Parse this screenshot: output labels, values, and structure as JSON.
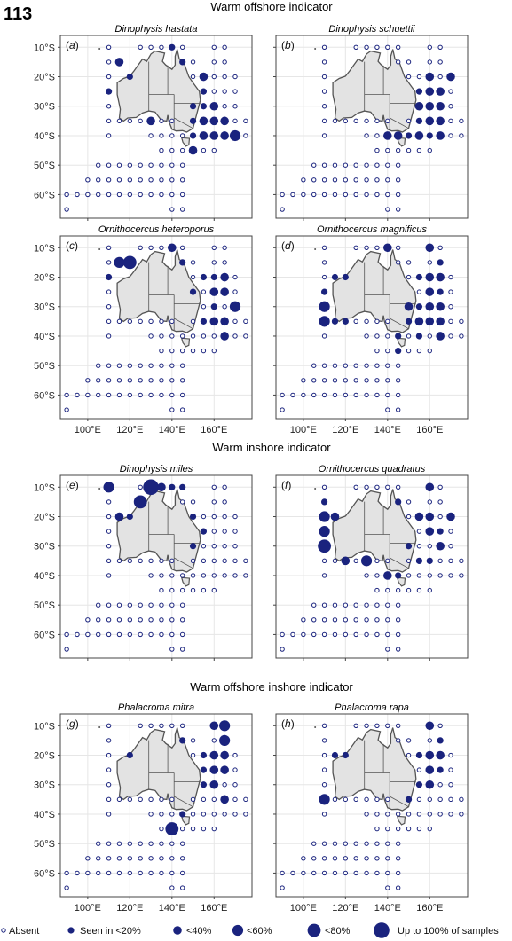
{
  "figure_number": "113",
  "sections": [
    {
      "title": "Warm offshore indicator"
    },
    {
      "title": "Warm inshore indicator"
    },
    {
      "title": "Warm offshore inshore indicator"
    }
  ],
  "axes": {
    "x_ticks": [
      "100°E",
      "120°E",
      "140°E",
      "160°E"
    ],
    "y_ticks": [
      "10°S",
      "20°S",
      "30°S",
      "40°S",
      "50°S",
      "60°S"
    ]
  },
  "colors": {
    "marker": "#1a237e",
    "land": "#e3e3e3",
    "coast": "#555555",
    "grid": "#e6e6e6",
    "frame": "#444444"
  },
  "legend": [
    {
      "label": "Absent",
      "category": "absent"
    },
    {
      "label": "Seen in <20%",
      "category": 1
    },
    {
      "label": "<40%",
      "category": 2
    },
    {
      "label": "<60%",
      "category": 3
    },
    {
      "label": "<80%",
      "category": 4
    },
    {
      "label": "Up to 100% of samples",
      "category": 5
    }
  ],
  "chart_data": [
    {
      "type": "scatter",
      "panel": "(a)",
      "title": "Dinophysis hastata",
      "section": "Warm offshore indicator",
      "xlim": [
        87,
        178
      ],
      "ylim": [
        -68,
        -6
      ],
      "size_scale": "0 = absent, 1 = <20%, 2 = <40%, 3 = <60%, 4 = <80%, 5 = up to 100% of samples",
      "present": [
        [
          115,
          -15,
          2
        ],
        [
          120,
          -20,
          1
        ],
        [
          110,
          -25,
          1
        ],
        [
          145,
          -15,
          1
        ],
        [
          140,
          -10,
          1
        ],
        [
          130,
          -35,
          2
        ],
        [
          155,
          -20,
          2
        ],
        [
          155,
          -25,
          1
        ],
        [
          150,
          -30,
          1
        ],
        [
          155,
          -30,
          1
        ],
        [
          160,
          -30,
          2
        ],
        [
          150,
          -35,
          1
        ],
        [
          155,
          -35,
          2
        ],
        [
          160,
          -35,
          2
        ],
        [
          165,
          -35,
          2
        ],
        [
          150,
          -40,
          1
        ],
        [
          155,
          -40,
          2
        ],
        [
          160,
          -40,
          2
        ],
        [
          165,
          -40,
          2
        ],
        [
          170,
          -40,
          3
        ],
        [
          150,
          -45,
          2
        ]
      ]
    },
    {
      "type": "scatter",
      "panel": "(b)",
      "title": "Dinophysis schuettii",
      "section": "Warm offshore indicator",
      "xlim": [
        87,
        178
      ],
      "ylim": [
        -68,
        -6
      ],
      "size_scale": "0 = absent, 1 = <20%, 2 = <40%, 3 = <60%, 4 = <80%, 5 = up to 100% of samples",
      "present": [
        [
          160,
          -20,
          2
        ],
        [
          170,
          -20,
          2
        ],
        [
          155,
          -25,
          1
        ],
        [
          160,
          -25,
          2
        ],
        [
          165,
          -25,
          2
        ],
        [
          155,
          -30,
          2
        ],
        [
          160,
          -30,
          2
        ],
        [
          165,
          -30,
          2
        ],
        [
          155,
          -35,
          1
        ],
        [
          160,
          -35,
          2
        ],
        [
          165,
          -35,
          2
        ],
        [
          140,
          -40,
          2
        ],
        [
          145,
          -40,
          2
        ],
        [
          150,
          -40,
          1
        ],
        [
          155,
          -40,
          2
        ],
        [
          160,
          -40,
          1
        ],
        [
          165,
          -40,
          2
        ]
      ]
    },
    {
      "type": "scatter",
      "panel": "(c)",
      "title": "Ornithocercus heteroporus",
      "section": "Warm offshore indicator",
      "xlim": [
        87,
        178
      ],
      "ylim": [
        -68,
        -6
      ],
      "size_scale": "0 = absent, 1 = <20%, 2 = <40%, 3 = <60%, 4 = <80%, 5 = up to 100% of samples",
      "present": [
        [
          115,
          -15,
          3
        ],
        [
          120,
          -15,
          4
        ],
        [
          110,
          -20,
          1
        ],
        [
          140,
          -10,
          2
        ],
        [
          145,
          -15,
          1
        ],
        [
          155,
          -20,
          1
        ],
        [
          160,
          -20,
          1
        ],
        [
          165,
          -20,
          2
        ],
        [
          150,
          -25,
          1
        ],
        [
          160,
          -25,
          2
        ],
        [
          165,
          -25,
          2
        ],
        [
          160,
          -30,
          1
        ],
        [
          170,
          -30,
          3
        ],
        [
          155,
          -35,
          1
        ],
        [
          160,
          -35,
          2
        ],
        [
          165,
          -35,
          2
        ],
        [
          165,
          -40,
          2
        ]
      ]
    },
    {
      "type": "scatter",
      "panel": "(d)",
      "title": "Ornithocercus magnificus",
      "section": "Warm offshore indicator",
      "xlim": [
        87,
        178
      ],
      "ylim": [
        -68,
        -6
      ],
      "size_scale": "0 = absent, 1 = <20%, 2 = <40%, 3 = <60%, 4 = <80%, 5 = up to 100% of samples",
      "present": [
        [
          140,
          -10,
          2
        ],
        [
          160,
          -10,
          2
        ],
        [
          165,
          -15,
          1
        ],
        [
          115,
          -20,
          1
        ],
        [
          120,
          -20,
          1
        ],
        [
          155,
          -20,
          1
        ],
        [
          160,
          -20,
          2
        ],
        [
          165,
          -20,
          2
        ],
        [
          110,
          -25,
          1
        ],
        [
          160,
          -25,
          2
        ],
        [
          165,
          -25,
          1
        ],
        [
          110,
          -30,
          3
        ],
        [
          150,
          -30,
          2
        ],
        [
          155,
          -30,
          1
        ],
        [
          160,
          -30,
          2
        ],
        [
          165,
          -30,
          2
        ],
        [
          110,
          -35,
          3
        ],
        [
          115,
          -35,
          1
        ],
        [
          120,
          -35,
          1
        ],
        [
          150,
          -35,
          1
        ],
        [
          155,
          -35,
          2
        ],
        [
          160,
          -35,
          2
        ],
        [
          165,
          -35,
          2
        ],
        [
          145,
          -40,
          1
        ],
        [
          155,
          -40,
          1
        ],
        [
          165,
          -40,
          2
        ],
        [
          145,
          -45,
          1
        ]
      ]
    },
    {
      "type": "scatter",
      "panel": "(e)",
      "title": "Dinophysis miles",
      "section": "Warm inshore indicator",
      "xlim": [
        87,
        178
      ],
      "ylim": [
        -68,
        -6
      ],
      "size_scale": "0 = absent, 1 = <20%, 2 = <40%, 3 = <60%, 4 = <80%, 5 = up to 100% of samples",
      "present": [
        [
          110,
          -10,
          3
        ],
        [
          130,
          -10,
          5
        ],
        [
          135,
          -10,
          2
        ],
        [
          140,
          -10,
          1
        ],
        [
          125,
          -15,
          4
        ],
        [
          145,
          -10,
          1
        ],
        [
          115,
          -20,
          2
        ],
        [
          120,
          -20,
          1
        ],
        [
          150,
          -20,
          1
        ],
        [
          155,
          -25,
          1
        ],
        [
          150,
          -30,
          1
        ]
      ]
    },
    {
      "type": "scatter",
      "panel": "(f)",
      "title": "Ornithocercus quadratus",
      "section": "Warm inshore indicator",
      "xlim": [
        87,
        178
      ],
      "ylim": [
        -68,
        -6
      ],
      "size_scale": "0 = absent, 1 = <20%, 2 = <40%, 3 = <60%, 4 = <80%, 5 = up to 100% of samples",
      "present": [
        [
          160,
          -10,
          2
        ],
        [
          110,
          -15,
          1
        ],
        [
          145,
          -15,
          1
        ],
        [
          110,
          -20,
          3
        ],
        [
          115,
          -20,
          2
        ],
        [
          155,
          -20,
          2
        ],
        [
          160,
          -20,
          2
        ],
        [
          170,
          -20,
          2
        ],
        [
          110,
          -25,
          3
        ],
        [
          160,
          -25,
          2
        ],
        [
          165,
          -25,
          1
        ],
        [
          110,
          -30,
          4
        ],
        [
          150,
          -30,
          1
        ],
        [
          165,
          -30,
          2
        ],
        [
          155,
          -35,
          1
        ],
        [
          160,
          -35,
          1
        ],
        [
          120,
          -35,
          2
        ],
        [
          130,
          -35,
          3
        ],
        [
          140,
          -40,
          2
        ],
        [
          145,
          -40,
          1
        ]
      ]
    },
    {
      "type": "scatter",
      "panel": "(g)",
      "title": "Phalacroma mitra",
      "section": "Warm offshore inshore indicator",
      "xlim": [
        87,
        178
      ],
      "ylim": [
        -68,
        -6
      ],
      "size_scale": "0 = absent, 1 = <20%, 2 = <40%, 3 = <60%, 4 = <80%, 5 = up to 100% of samples",
      "present": [
        [
          160,
          -10,
          2
        ],
        [
          165,
          -10,
          3
        ],
        [
          165,
          -15,
          3
        ],
        [
          120,
          -20,
          1
        ],
        [
          145,
          -15,
          1
        ],
        [
          155,
          -20,
          1
        ],
        [
          160,
          -20,
          2
        ],
        [
          165,
          -20,
          2
        ],
        [
          155,
          -25,
          1
        ],
        [
          160,
          -25,
          2
        ],
        [
          165,
          -25,
          2
        ],
        [
          160,
          -30,
          2
        ],
        [
          165,
          -35,
          2
        ],
        [
          155,
          -30,
          1
        ],
        [
          145,
          -40,
          1
        ],
        [
          140,
          -45,
          4
        ]
      ]
    },
    {
      "type": "scatter",
      "panel": "(h)",
      "title": "Phalacroma rapa",
      "section": "Warm offshore inshore indicator",
      "xlim": [
        87,
        178
      ],
      "ylim": [
        -68,
        -6
      ],
      "size_scale": "0 = absent, 1 = <20%, 2 = <40%, 3 = <60%, 4 = <80%, 5 = up to 100% of samples",
      "present": [
        [
          160,
          -10,
          2
        ],
        [
          165,
          -15,
          1
        ],
        [
          115,
          -20,
          1
        ],
        [
          120,
          -20,
          1
        ],
        [
          155,
          -20,
          1
        ],
        [
          160,
          -20,
          2
        ],
        [
          165,
          -20,
          2
        ],
        [
          160,
          -25,
          2
        ],
        [
          165,
          -25,
          1
        ],
        [
          155,
          -30,
          1
        ],
        [
          160,
          -30,
          2
        ],
        [
          110,
          -35,
          3
        ],
        [
          150,
          -35,
          1
        ]
      ]
    }
  ]
}
